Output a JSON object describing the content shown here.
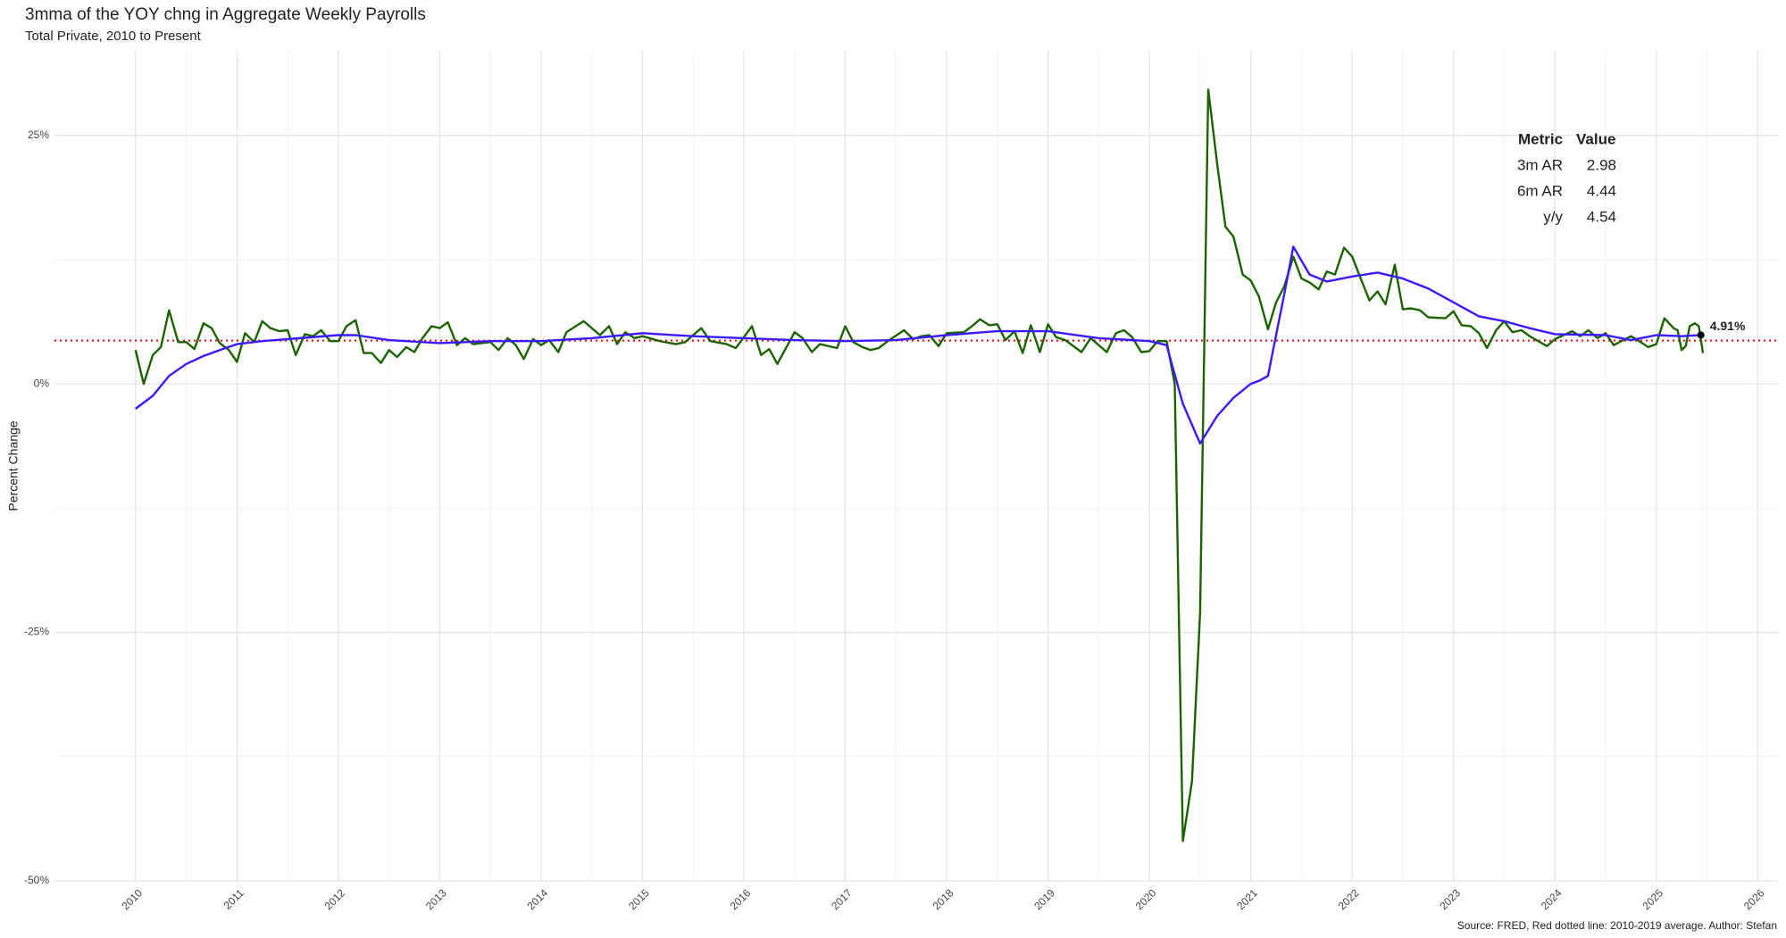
{
  "chart_data": {
    "type": "line",
    "title": "3mma of the YOY chng in Aggregate Weekly Payrolls",
    "subtitle": "Total Private, 2010 to Present",
    "ylabel": "Percent Change",
    "caption": "Source: FRED, Red dotted line: 2010-2019 average. Author: Stefan",
    "xlim": [
      2009.2,
      2026.2
    ],
    "xticks": [
      2010,
      2011,
      2012,
      2013,
      2014,
      2015,
      2016,
      2017,
      2018,
      2019,
      2020,
      2021,
      2022,
      2023,
      2024,
      2025,
      2026
    ],
    "ylim": [
      -50,
      33.5
    ],
    "yticks": [
      {
        "value": -50,
        "label": "-50%"
      },
      {
        "value": -25,
        "label": "-25%"
      },
      {
        "value": 0,
        "label": "0%"
      },
      {
        "value": 25,
        "label": "25%"
      }
    ],
    "grid": true,
    "reference_line": {
      "value": 4.35,
      "color": "#ff0000",
      "style": "dotted"
    },
    "series": [
      {
        "color": "#1b6300",
        "x": [
          2010.0,
          2010.08,
          2010.17,
          2010.25,
          2010.33,
          2010.42,
          2010.5,
          2010.58,
          2010.67,
          2010.75,
          2010.83,
          2010.92,
          2011.0,
          2011.08,
          2011.17,
          2011.25,
          2011.33,
          2011.42,
          2011.5,
          2011.58,
          2011.67,
          2011.75,
          2011.83,
          2011.92,
          2012.0,
          2012.08,
          2012.17,
          2012.25,
          2012.33,
          2012.42,
          2012.5,
          2012.58,
          2012.67,
          2012.75,
          2012.83,
          2012.92,
          2013.0,
          2013.08,
          2013.17,
          2013.25,
          2013.33,
          2013.5,
          2013.58,
          2013.67,
          2013.75,
          2013.83,
          2013.92,
          2014.0,
          2014.08,
          2014.17,
          2014.25,
          2014.42,
          2014.58,
          2014.67,
          2014.75,
          2014.83,
          2014.92,
          2015.0,
          2015.17,
          2015.33,
          2015.42,
          2015.58,
          2015.67,
          2015.83,
          2015.92,
          2016.08,
          2016.17,
          2016.25,
          2016.33,
          2016.5,
          2016.58,
          2016.67,
          2016.75,
          2016.92,
          2017.0,
          2017.08,
          2017.17,
          2017.25,
          2017.33,
          2017.42,
          2017.58,
          2017.67,
          2017.75,
          2017.83,
          2017.92,
          2018.0,
          2018.17,
          2018.25,
          2018.33,
          2018.42,
          2018.5,
          2018.58,
          2018.67,
          2018.75,
          2018.83,
          2018.92,
          2019.0,
          2019.08,
          2019.17,
          2019.33,
          2019.42,
          2019.58,
          2019.67,
          2019.75,
          2019.83,
          2019.92,
          2020.0,
          2020.08,
          2020.17,
          2020.25,
          2020.33,
          2020.42,
          2020.5,
          2020.58,
          2020.67,
          2020.75,
          2020.83,
          2020.92,
          2021.0,
          2021.08,
          2021.17,
          2021.25,
          2021.33,
          2021.42,
          2021.5,
          2021.58,
          2021.67,
          2021.75,
          2021.83,
          2021.92,
          2022.0,
          2022.08,
          2022.17,
          2022.25,
          2022.33,
          2022.42,
          2022.5,
          2022.58,
          2022.67,
          2022.75,
          2022.92,
          2023.0,
          2023.08,
          2023.17,
          2023.25,
          2023.33,
          2023.42,
          2023.5,
          2023.58,
          2023.67,
          2023.75,
          2023.92,
          2024.0,
          2024.17,
          2024.25,
          2024.33,
          2024.42,
          2024.5,
          2024.58,
          2024.75,
          2024.83,
          2024.92,
          2025.0,
          2025.08,
          2025.17,
          2025.21,
          2025.25,
          2025.29,
          2025.33,
          2025.38,
          2025.42,
          2025.46
        ],
        "values": [
          3.4,
          0.0,
          2.9,
          3.7,
          7.4,
          4.2,
          4.2,
          3.5,
          6.1,
          5.6,
          4.1,
          3.4,
          2.2,
          5.1,
          4.2,
          6.3,
          5.6,
          5.3,
          5.4,
          2.9,
          5.0,
          4.8,
          5.4,
          4.3,
          4.3,
          5.8,
          6.4,
          3.1,
          3.1,
          2.1,
          3.4,
          2.7,
          3.7,
          3.2,
          4.6,
          5.8,
          5.6,
          6.2,
          3.9,
          4.6,
          4.0,
          4.2,
          3.4,
          4.6,
          3.9,
          2.5,
          4.5,
          3.9,
          4.4,
          3.2,
          5.2,
          6.3,
          4.9,
          5.8,
          4.0,
          5.2,
          4.6,
          4.8,
          4.3,
          4.0,
          4.2,
          5.6,
          4.3,
          4.0,
          3.6,
          5.8,
          2.9,
          3.5,
          2.0,
          5.2,
          4.6,
          3.2,
          4.0,
          3.6,
          5.8,
          4.2,
          3.7,
          3.4,
          3.6,
          4.3,
          5.4,
          4.5,
          4.8,
          4.9,
          3.8,
          5.1,
          5.2,
          5.8,
          6.5,
          5.9,
          6.0,
          4.4,
          5.3,
          3.1,
          5.9,
          3.2,
          6.0,
          4.7,
          4.4,
          3.2,
          4.6,
          3.2,
          5.1,
          5.4,
          4.7,
          3.2,
          3.3,
          4.3,
          4.3,
          0.0,
          -46.0,
          -40.0,
          -23.0,
          29.6,
          22.0,
          15.8,
          14.8,
          11.0,
          10.4,
          8.8,
          5.5,
          8.2,
          9.8,
          12.8,
          10.6,
          10.2,
          9.5,
          11.3,
          11.0,
          13.7,
          12.8,
          10.7,
          8.4,
          9.3,
          8.0,
          12.0,
          7.5,
          7.6,
          7.4,
          6.7,
          6.6,
          7.3,
          5.9,
          5.8,
          5.1,
          3.6,
          5.4,
          6.3,
          5.2,
          5.4,
          4.8,
          3.8,
          4.5,
          5.3,
          4.8,
          5.4,
          4.6,
          5.1,
          3.9,
          4.8,
          4.3,
          3.7,
          4.0,
          6.6,
          5.6,
          5.4,
          3.4,
          3.8,
          5.8,
          6.1,
          5.8,
          3.1
        ]
      },
      {
        "color": "#3a1aff",
        "x": [
          2010.0,
          2010.17,
          2010.33,
          2010.5,
          2010.67,
          2010.83,
          2011.0,
          2011.25,
          2011.5,
          2012.0,
          2012.17,
          2012.5,
          2013.0,
          2013.5,
          2014.0,
          2014.5,
          2015.0,
          2015.5,
          2016.0,
          2016.5,
          2017.0,
          2017.5,
          2018.0,
          2018.5,
          2019.0,
          2019.5,
          2020.0,
          2020.17,
          2020.33,
          2020.5,
          2020.67,
          2020.83,
          2021.0,
          2021.08,
          2021.17,
          2021.33,
          2021.42,
          2021.58,
          2021.75,
          2022.0,
          2022.25,
          2022.5,
          2022.75,
          2023.0,
          2023.25,
          2023.5,
          2023.75,
          2024.0,
          2024.5,
          2024.75,
          2025.0,
          2025.25,
          2025.44
        ],
        "values": [
          -2.5,
          -1.2,
          0.8,
          2.0,
          2.8,
          3.4,
          4.0,
          4.3,
          4.5,
          4.9,
          4.9,
          4.4,
          4.1,
          4.3,
          4.3,
          4.6,
          5.1,
          4.8,
          4.6,
          4.4,
          4.3,
          4.4,
          4.9,
          5.3,
          5.3,
          4.6,
          4.3,
          3.9,
          -2.0,
          -6.0,
          -3.2,
          -1.4,
          0.0,
          0.3,
          0.8,
          9.0,
          13.8,
          11.0,
          10.3,
          10.8,
          11.2,
          10.6,
          9.6,
          8.2,
          6.8,
          6.3,
          5.6,
          5.0,
          4.9,
          4.4,
          4.9,
          4.8,
          4.91
        ]
      }
    ],
    "annotations": [
      {
        "x": 2025.44,
        "y": 4.91,
        "text": "4.91%"
      }
    ],
    "table": {
      "columns": [
        "Metric",
        "Value"
      ],
      "rows": [
        [
          "3m AR",
          2.98
        ],
        [
          "6m AR",
          4.44
        ],
        [
          "y/y",
          4.54
        ]
      ]
    }
  }
}
